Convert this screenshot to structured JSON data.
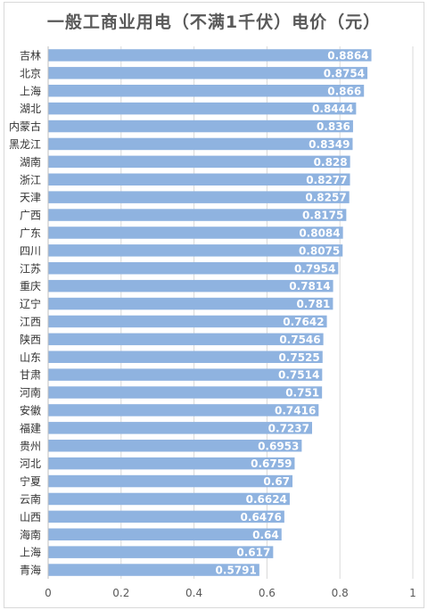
{
  "chart_data": {
    "type": "bar",
    "orientation": "horizontal",
    "title": "一般工商业用电（不满1千伏）电价（元）",
    "categories": [
      "吉林",
      "北京",
      "上海",
      "湖北",
      "内蒙古",
      "黑龙江",
      "湖南",
      "浙江",
      "天津",
      "广西",
      "广东",
      "四川",
      "江苏",
      "重庆",
      "辽宁",
      "江西",
      "陕西",
      "山东",
      "甘肃",
      "河南",
      "安徽",
      "福建",
      "贵州",
      "河北",
      "宁夏",
      "云南",
      "山西",
      "海南",
      "上海",
      "青海"
    ],
    "values": [
      0.8864,
      0.8754,
      0.866,
      0.8444,
      0.836,
      0.8349,
      0.828,
      0.8277,
      0.8257,
      0.8175,
      0.8084,
      0.8075,
      0.7954,
      0.7814,
      0.781,
      0.7642,
      0.7546,
      0.7525,
      0.7514,
      0.751,
      0.7416,
      0.7237,
      0.6953,
      0.6759,
      0.67,
      0.6624,
      0.6476,
      0.64,
      0.617,
      0.5791
    ],
    "value_labels": [
      "0.8864",
      "0.8754",
      "0.866",
      "0.8444",
      "0.836",
      "0.8349",
      "0.828",
      "0.8277",
      "0.8257",
      "0.8175",
      "0.8084",
      "0.8075",
      "0.7954",
      "0.7814",
      "0.781",
      "0.7642",
      "0.7546",
      "0.7525",
      "0.7514",
      "0.751",
      "0.7416",
      "0.7237",
      "0.6953",
      "0.6759",
      "0.67",
      "0.6624",
      "0.6476",
      "0.64",
      "0.617",
      "0.5791"
    ],
    "xlim": [
      0,
      1
    ],
    "xticks": [
      "0",
      "0.2",
      "0.4",
      "0.6",
      "0.8",
      "1"
    ],
    "xlabel": "",
    "ylabel": "",
    "grid": true,
    "bar_color": "#8fb3e0",
    "grid_color": "#d9d9d9",
    "label_color": "#ffffff",
    "text_color": "#333333"
  }
}
